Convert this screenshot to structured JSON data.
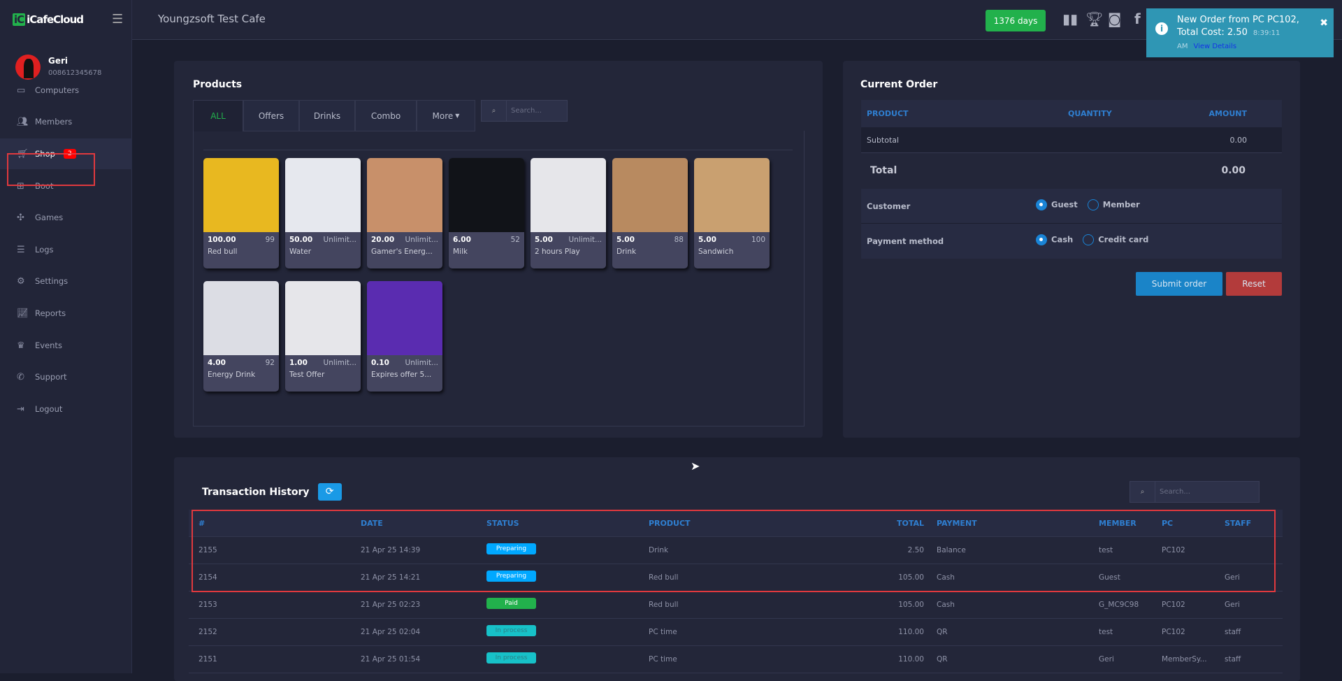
{
  "app": {
    "logo": "iCafeCloud",
    "cafe_name": "Youngzsoft Test Cafe",
    "days": "1376 days"
  },
  "user": {
    "name": "Geri",
    "phone": "008612345678"
  },
  "sidebar": {
    "items": [
      {
        "label": "Computers",
        "icon": "monitor-icon"
      },
      {
        "label": "Members",
        "icon": "users-icon"
      },
      {
        "label": "Shop",
        "icon": "cart-icon",
        "badge": "2"
      },
      {
        "label": "Boot",
        "icon": "windows-icon"
      },
      {
        "label": "Games",
        "icon": "gamepad-icon"
      },
      {
        "label": "Logs",
        "icon": "list-icon"
      },
      {
        "label": "Settings",
        "icon": "gear-icon"
      },
      {
        "label": "Reports",
        "icon": "chart-icon"
      },
      {
        "label": "Events",
        "icon": "crown-icon"
      },
      {
        "label": "Support",
        "icon": "phone-icon"
      },
      {
        "label": "Logout",
        "icon": "logout-icon"
      }
    ]
  },
  "toast": {
    "message": "New Order from PC PC102, Total Cost: 2.50",
    "time": "8:39:11 AM",
    "link": "View Details"
  },
  "products": {
    "title": "Products",
    "tabs": [
      "ALL",
      "Offers",
      "Drinks",
      "Combo",
      "More"
    ],
    "search_placeholder": "Search...",
    "items": [
      {
        "price": "100.00",
        "stock": "99",
        "name": "Red bull",
        "color": "#e8b820"
      },
      {
        "price": "50.00",
        "stock": "Unlimit...",
        "name": "Water",
        "color": "#e6e8ee"
      },
      {
        "price": "20.00",
        "stock": "Unlimit...",
        "name": "Gamer's Energ...",
        "color": "#c8906a"
      },
      {
        "price": "6.00",
        "stock": "52",
        "name": "Milk",
        "color": "#111318"
      },
      {
        "price": "5.00",
        "stock": "Unlimit...",
        "name": "2 hours Play",
        "color": "#e6e6ea"
      },
      {
        "price": "5.00",
        "stock": "88",
        "name": "Drink",
        "color": "#b88a60"
      },
      {
        "price": "5.00",
        "stock": "100",
        "name": "Sandwich",
        "color": "#c9a070"
      },
      {
        "price": "4.00",
        "stock": "92",
        "name": "Energy Drink",
        "color": "#dcdde4"
      },
      {
        "price": "1.00",
        "stock": "Unlimit...",
        "name": "Test Offer",
        "color": "#e6e6ea"
      },
      {
        "price": "0.10",
        "stock": "Unlimit...",
        "name": "Expires offer 5...",
        "color": "#5a2cb0"
      }
    ]
  },
  "order": {
    "title": "Current Order",
    "headers": [
      "PRODUCT",
      "QUANTITY",
      "AMOUNT"
    ],
    "subtotal_label": "Subtotal",
    "subtotal": "0.00",
    "total_label": "Total",
    "total": "0.00",
    "customer_label": "Customer",
    "customer_options": [
      "Guest",
      "Member"
    ],
    "customer_selected": "Guest",
    "payment_label": "Payment method",
    "payment_options": [
      "Cash",
      "Credit card"
    ],
    "payment_selected": "Cash",
    "submit": "Submit order",
    "reset": "Reset"
  },
  "transactions": {
    "title": "Transaction History",
    "search_placeholder": "Search...",
    "headers": [
      "#",
      "DATE",
      "STATUS",
      "PRODUCT",
      "TOTAL",
      "PAYMENT",
      "MEMBER",
      "PC",
      "STAFF"
    ],
    "rows": [
      [
        "2155",
        "21 Apr 25 14:39",
        "Preparing",
        "Drink",
        "2.50",
        "Balance",
        "test",
        "PC102",
        ""
      ],
      [
        "2154",
        "21 Apr 25 14:21",
        "Preparing",
        "Red bull",
        "105.00",
        "Cash",
        "Guest",
        "",
        "Geri"
      ],
      [
        "2153",
        "21 Apr 25 02:23",
        "Paid",
        "Red bull",
        "105.00",
        "Cash",
        "G_MC9C98",
        "PC102",
        "Geri"
      ],
      [
        "2152",
        "21 Apr 25 02:04",
        "In process",
        "PC time",
        "110.00",
        "QR",
        "test",
        "PC102",
        "staff"
      ],
      [
        "2151",
        "21 Apr 25 01:54",
        "In process",
        "PC time",
        "110.00",
        "QR",
        "Geri",
        "MemberSy...",
        "staff"
      ]
    ]
  },
  "status_colors": {
    "Preparing": "#00a8ff",
    "Paid": "#22b14c",
    "In process": "#17c1c8"
  }
}
